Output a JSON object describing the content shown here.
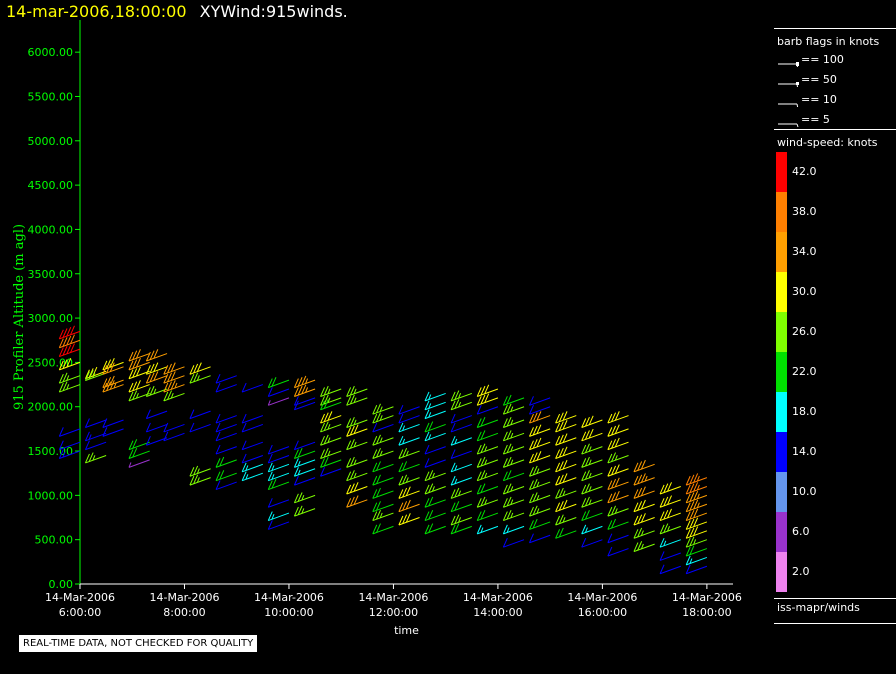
{
  "header": {
    "datetime": "14-mar-2006,18:00:00",
    "product": "XYWind:915winds."
  },
  "chart_data": {
    "type": "scatter",
    "title": "XYWind:915winds.",
    "xlabel": "time",
    "ylabel": "915 Profiler Altitude (m agl)",
    "ylim": [
      0,
      6250
    ],
    "xlim": [
      "14-Mar-2006 6:00:00",
      "14-Mar-2006 18:30:00"
    ],
    "y_ticks": [
      "0.00",
      "500.00",
      "1000.00",
      "1500.00",
      "2000.00",
      "2500.00",
      "3000.00",
      "3500.00",
      "4000.00",
      "4500.00",
      "5000.00",
      "5500.00",
      "6000.00"
    ],
    "x_ticks": [
      {
        "date": "14-Mar-2006",
        "time": "6:00:00"
      },
      {
        "date": "14-Mar-2006",
        "time": "8:00:00"
      },
      {
        "date": "14-Mar-2006",
        "time": "10:00:00"
      },
      {
        "date": "14-Mar-2006",
        "time": "12:00:00"
      },
      {
        "date": "14-Mar-2006",
        "time": "14:00:00"
      },
      {
        "date": "14-Mar-2006",
        "time": "16:00:00"
      },
      {
        "date": "14-Mar-2006",
        "time": "18:00:00"
      }
    ],
    "marker": "wind barb, colored by speed",
    "series": [
      {
        "x": "06:00",
        "points": [
          [
            2850,
            42
          ],
          [
            2750,
            40
          ],
          [
            2650,
            42
          ],
          [
            2500,
            30
          ],
          [
            2350,
            26
          ],
          [
            2250,
            26
          ],
          [
            1750,
            14
          ],
          [
            1600,
            14
          ],
          [
            1500,
            16
          ]
        ]
      },
      {
        "x": "06:30",
        "points": [
          [
            2400,
            30
          ],
          [
            2380,
            28
          ],
          [
            1850,
            14
          ],
          [
            1700,
            16
          ],
          [
            1600,
            14
          ],
          [
            1450,
            26
          ]
        ]
      },
      {
        "x": "06:50",
        "points": [
          [
            2500,
            32
          ],
          [
            2450,
            34
          ],
          [
            2300,
            34
          ],
          [
            2250,
            36
          ],
          [
            1850,
            14
          ],
          [
            1750,
            14
          ]
        ]
      },
      {
        "x": "07:20",
        "points": [
          [
            2600,
            34
          ],
          [
            2500,
            34
          ],
          [
            2400,
            32
          ],
          [
            2250,
            32
          ],
          [
            2150,
            26
          ],
          [
            1600,
            22
          ],
          [
            1500,
            22
          ],
          [
            1400,
            6
          ]
        ]
      },
      {
        "x": "07:40",
        "points": [
          [
            2600,
            34
          ],
          [
            2450,
            32
          ],
          [
            2350,
            34
          ],
          [
            2200,
            26
          ],
          [
            1950,
            14
          ],
          [
            1800,
            14
          ],
          [
            1650,
            14
          ]
        ]
      },
      {
        "x": "08:00",
        "points": [
          [
            2450,
            34
          ],
          [
            2350,
            34
          ],
          [
            2250,
            36
          ],
          [
            2150,
            26
          ],
          [
            1800,
            14
          ],
          [
            1700,
            14
          ]
        ]
      },
      {
        "x": "08:30",
        "points": [
          [
            2450,
            30
          ],
          [
            2350,
            28
          ],
          [
            1950,
            14
          ],
          [
            1800,
            14
          ],
          [
            1300,
            26
          ],
          [
            1200,
            26
          ]
        ]
      },
      {
        "x": "09:00",
        "points": [
          [
            2350,
            14
          ],
          [
            2250,
            14
          ],
          [
            1900,
            14
          ],
          [
            1800,
            14
          ],
          [
            1700,
            14
          ],
          [
            1550,
            14
          ],
          [
            1400,
            22
          ],
          [
            1250,
            22
          ],
          [
            1150,
            14
          ]
        ]
      },
      {
        "x": "09:30",
        "points": [
          [
            2250,
            14
          ],
          [
            1900,
            14
          ],
          [
            1800,
            14
          ],
          [
            1600,
            14
          ],
          [
            1450,
            14
          ],
          [
            1350,
            18
          ],
          [
            1250,
            18
          ]
        ]
      },
      {
        "x": "10:00",
        "points": [
          [
            2300,
            22
          ],
          [
            2200,
            14
          ],
          [
            2100,
            6
          ],
          [
            1550,
            14
          ],
          [
            1450,
            14
          ],
          [
            1350,
            18
          ],
          [
            1250,
            18
          ],
          [
            1150,
            22
          ],
          [
            950,
            14
          ],
          [
            800,
            18
          ],
          [
            700,
            14
          ]
        ]
      },
      {
        "x": "10:30",
        "points": [
          [
            2300,
            36
          ],
          [
            2200,
            36
          ],
          [
            2100,
            14
          ],
          [
            2050,
            14
          ],
          [
            1600,
            14
          ],
          [
            1500,
            22
          ],
          [
            1400,
            18
          ],
          [
            1300,
            18
          ],
          [
            1200,
            14
          ],
          [
            1000,
            26
          ],
          [
            850,
            26
          ]
        ]
      },
      {
        "x": "11:00",
        "points": [
          [
            2200,
            28
          ],
          [
            2100,
            28
          ],
          [
            2050,
            22
          ],
          [
            1900,
            30
          ],
          [
            1800,
            26
          ],
          [
            1650,
            26
          ],
          [
            1500,
            26
          ],
          [
            1400,
            22
          ],
          [
            1300,
            14
          ]
        ]
      },
      {
        "x": "11:30",
        "points": [
          [
            2200,
            26
          ],
          [
            2100,
            26
          ],
          [
            1850,
            28
          ],
          [
            1750,
            30
          ],
          [
            1600,
            26
          ],
          [
            1400,
            26
          ],
          [
            1250,
            26
          ],
          [
            1100,
            30
          ],
          [
            950,
            34
          ]
        ]
      },
      {
        "x": "12:00",
        "points": [
          [
            2000,
            26
          ],
          [
            1900,
            26
          ],
          [
            1800,
            14
          ],
          [
            1650,
            26
          ],
          [
            1500,
            26
          ],
          [
            1350,
            22
          ],
          [
            1200,
            22
          ],
          [
            1050,
            22
          ],
          [
            900,
            22
          ],
          [
            800,
            26
          ],
          [
            650,
            22
          ]
        ]
      },
      {
        "x": "12:30",
        "points": [
          [
            2000,
            14
          ],
          [
            1900,
            14
          ],
          [
            1800,
            18
          ],
          [
            1650,
            18
          ],
          [
            1500,
            26
          ],
          [
            1350,
            22
          ],
          [
            1200,
            26
          ],
          [
            1050,
            30
          ],
          [
            900,
            34
          ],
          [
            750,
            30
          ]
        ]
      },
      {
        "x": "13:00",
        "points": [
          [
            2150,
            18
          ],
          [
            2050,
            18
          ],
          [
            1950,
            18
          ],
          [
            1800,
            22
          ],
          [
            1700,
            18
          ],
          [
            1550,
            14
          ],
          [
            1400,
            14
          ],
          [
            1250,
            26
          ],
          [
            1100,
            26
          ],
          [
            950,
            22
          ],
          [
            800,
            22
          ],
          [
            650,
            22
          ]
        ]
      },
      {
        "x": "13:30",
        "points": [
          [
            2150,
            26
          ],
          [
            2050,
            26
          ],
          [
            1900,
            14
          ],
          [
            1800,
            14
          ],
          [
            1650,
            18
          ],
          [
            1500,
            14
          ],
          [
            1350,
            18
          ],
          [
            1200,
            18
          ],
          [
            1050,
            26
          ],
          [
            900,
            22
          ],
          [
            750,
            26
          ],
          [
            650,
            22
          ]
        ]
      },
      {
        "x": "14:00",
        "points": [
          [
            2200,
            30
          ],
          [
            2100,
            30
          ],
          [
            2000,
            14
          ],
          [
            1850,
            22
          ],
          [
            1700,
            22
          ],
          [
            1550,
            26
          ],
          [
            1400,
            26
          ],
          [
            1250,
            26
          ],
          [
            1100,
            22
          ],
          [
            950,
            26
          ],
          [
            800,
            22
          ],
          [
            650,
            18
          ]
        ]
      },
      {
        "x": "14:30",
        "points": [
          [
            2100,
            22
          ],
          [
            2000,
            26
          ],
          [
            1850,
            28
          ],
          [
            1700,
            26
          ],
          [
            1550,
            26
          ],
          [
            1400,
            26
          ],
          [
            1250,
            22
          ],
          [
            1100,
            26
          ],
          [
            950,
            26
          ],
          [
            800,
            26
          ],
          [
            650,
            18
          ],
          [
            500,
            14
          ]
        ]
      },
      {
        "x": "15:00",
        "points": [
          [
            2100,
            14
          ],
          [
            2000,
            14
          ],
          [
            1900,
            34
          ],
          [
            1750,
            30
          ],
          [
            1600,
            30
          ],
          [
            1450,
            30
          ],
          [
            1300,
            26
          ],
          [
            1150,
            26
          ],
          [
            1000,
            26
          ],
          [
            850,
            26
          ],
          [
            700,
            22
          ],
          [
            550,
            14
          ]
        ]
      },
      {
        "x": "15:30",
        "points": [
          [
            1900,
            32
          ],
          [
            1800,
            30
          ],
          [
            1650,
            30
          ],
          [
            1500,
            30
          ],
          [
            1350,
            30
          ],
          [
            1200,
            30
          ],
          [
            1050,
            28
          ],
          [
            900,
            30
          ],
          [
            750,
            26
          ],
          [
            600,
            22
          ]
        ]
      },
      {
        "x": "16:00",
        "points": [
          [
            1850,
            30
          ],
          [
            1700,
            30
          ],
          [
            1550,
            26
          ],
          [
            1400,
            26
          ],
          [
            1250,
            26
          ],
          [
            1100,
            26
          ],
          [
            950,
            26
          ],
          [
            800,
            22
          ],
          [
            650,
            18
          ],
          [
            500,
            14
          ]
        ]
      },
      {
        "x": "16:30",
        "points": [
          [
            1900,
            30
          ],
          [
            1750,
            32
          ],
          [
            1600,
            30
          ],
          [
            1450,
            26
          ],
          [
            1300,
            30
          ],
          [
            1150,
            34
          ],
          [
            1000,
            34
          ],
          [
            850,
            26
          ],
          [
            700,
            22
          ],
          [
            550,
            14
          ],
          [
            400,
            14
          ]
        ]
      },
      {
        "x": "17:00",
        "points": [
          [
            1350,
            34
          ],
          [
            1200,
            36
          ],
          [
            1050,
            34
          ],
          [
            900,
            30
          ],
          [
            750,
            30
          ],
          [
            600,
            26
          ],
          [
            450,
            26
          ]
        ]
      },
      {
        "x": "17:30",
        "points": [
          [
            1100,
            30
          ],
          [
            950,
            30
          ],
          [
            800,
            30
          ],
          [
            650,
            26
          ],
          [
            500,
            18
          ],
          [
            350,
            14
          ],
          [
            200,
            14
          ]
        ]
      },
      {
        "x": "18:00",
        "points": [
          [
            1200,
            38
          ],
          [
            1100,
            38
          ],
          [
            1000,
            36
          ],
          [
            900,
            36
          ],
          [
            800,
            34
          ],
          [
            700,
            30
          ],
          [
            600,
            30
          ],
          [
            500,
            26
          ],
          [
            400,
            22
          ],
          [
            300,
            18
          ],
          [
            200,
            14
          ]
        ]
      }
    ]
  },
  "legend": {
    "barb_title": "barb flags in knots",
    "barb_flags": [
      {
        "label": "== 100",
        "value": 100
      },
      {
        "label": "== 50",
        "value": 50
      },
      {
        "label": "== 10",
        "value": 10
      },
      {
        "label": "== 5",
        "value": 5
      }
    ],
    "colorbar_title": "wind-speed: knots",
    "colorbar": [
      {
        "label": "42.0",
        "color": "#ff0000"
      },
      {
        "label": "38.0",
        "color": "#ff7f00"
      },
      {
        "label": "34.0",
        "color": "#ff9f00"
      },
      {
        "label": "30.0",
        "color": "#ffff00"
      },
      {
        "label": "26.0",
        "color": "#7fff00"
      },
      {
        "label": "22.0",
        "color": "#00e000"
      },
      {
        "label": "18.0",
        "color": "#00ffff"
      },
      {
        "label": "14.0",
        "color": "#0000ff"
      },
      {
        "label": "10.0",
        "color": "#6495ed"
      },
      {
        "label": "6.0",
        "color": "#9932cc"
      },
      {
        "label": "2.0",
        "color": "#ee82ee"
      }
    ],
    "source": "iss-mapr/winds"
  },
  "footer": {
    "quality_note": "REAL-TIME DATA, NOT CHECKED FOR QUALITY"
  },
  "colors": {
    "axis": "#00ff00",
    "background": "#000000"
  }
}
